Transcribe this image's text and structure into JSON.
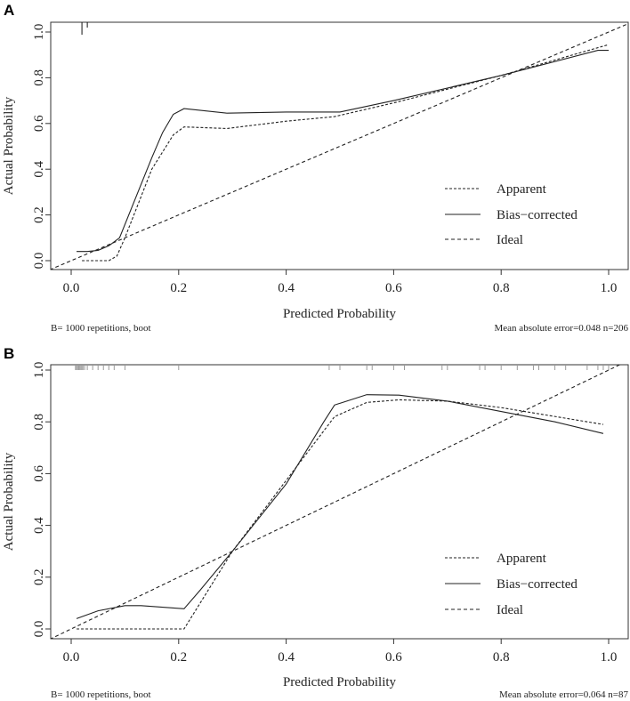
{
  "chart_data": [
    {
      "type": "line",
      "panel": "A",
      "xlabel": "Predicted Probability",
      "ylabel": "Actual Probability",
      "xlim": [
        -0.04,
        1.04
      ],
      "ylim": [
        -0.04,
        1.04
      ],
      "xticks": [
        "0.0",
        "0.2",
        "0.4",
        "0.6",
        "0.8",
        "1.0"
      ],
      "yticks": [
        "0.0",
        "0.2",
        "0.4",
        "0.6",
        "0.8",
        "1.0"
      ],
      "legend": {
        "position": "bottom-right",
        "labels": [
          "Apparent",
          "Bias−corrected",
          "Ideal"
        ]
      },
      "footnote_left": "B= 1000 repetitions, boot",
      "footnote_right": "Mean absolute error=0.048 n=206",
      "rug": [
        0.02,
        0.03
      ],
      "series": [
        {
          "name": "Apparent",
          "style": "dashed",
          "x": [
            0.02,
            0.07,
            0.085,
            0.1,
            0.15,
            0.19,
            0.21,
            0.29,
            0.4,
            0.49,
            0.6,
            0.8,
            1.0
          ],
          "y": [
            0,
            0,
            0.02,
            0.1,
            0.4,
            0.55,
            0.585,
            0.578,
            0.61,
            0.63,
            0.69,
            0.81,
            0.945
          ]
        },
        {
          "name": "Bias-corrected",
          "style": "solid",
          "x": [
            0.01,
            0.03,
            0.05,
            0.07,
            0.09,
            0.15,
            0.17,
            0.19,
            0.21,
            0.29,
            0.4,
            0.5,
            0.6,
            0.8,
            0.98,
            1.0
          ],
          "y": [
            0.04,
            0.04,
            0.045,
            0.065,
            0.1,
            0.45,
            0.56,
            0.64,
            0.665,
            0.645,
            0.65,
            0.65,
            0.7,
            0.81,
            0.92,
            0.92
          ]
        },
        {
          "name": "Ideal",
          "style": "dashed",
          "x": [
            -0.04,
            1.04
          ],
          "y": [
            -0.04,
            1.04
          ]
        }
      ]
    },
    {
      "type": "line",
      "panel": "B",
      "xlabel": "Predicted Probability",
      "ylabel": "Actual Probability",
      "xlim": [
        -0.04,
        1.04
      ],
      "ylim": [
        -0.04,
        1.04
      ],
      "xticks": [
        "0.0",
        "0.2",
        "0.4",
        "0.6",
        "0.8",
        "1.0"
      ],
      "yticks": [
        "0.0",
        "0.2",
        "0.4",
        "0.6",
        "0.8",
        "1.0"
      ],
      "legend": {
        "position": "bottom-right",
        "labels": [
          "Apparent",
          "Bias−corrected",
          "Ideal"
        ]
      },
      "footnote_left": "B= 1000 repetitions, boot",
      "footnote_right": "Mean absolute error=0.064 n=87",
      "rug": [
        0.008,
        0.01,
        0.012,
        0.014,
        0.016,
        0.018,
        0.02,
        0.022,
        0.025,
        0.03,
        0.04,
        0.05,
        0.06,
        0.07,
        0.08,
        0.1,
        0.2,
        0.48,
        0.5,
        0.55,
        0.56,
        0.6,
        0.62,
        0.69,
        0.7,
        0.76,
        0.77,
        0.8,
        0.83,
        0.86,
        0.87,
        0.9,
        0.92,
        0.96,
        0.98,
        0.99,
        1.0
      ],
      "series": [
        {
          "name": "Apparent",
          "style": "dashed",
          "x": [
            0.01,
            0.21,
            0.3,
            0.49,
            0.55,
            0.61,
            0.7,
            0.8,
            0.99
          ],
          "y": [
            0,
            0,
            0.3,
            0.82,
            0.875,
            0.885,
            0.88,
            0.855,
            0.79
          ]
        },
        {
          "name": "Bias-corrected",
          "style": "solid",
          "x": [
            0.01,
            0.05,
            0.1,
            0.13,
            0.21,
            0.24,
            0.3,
            0.4,
            0.47,
            0.49,
            0.55,
            0.61,
            0.7,
            0.8,
            0.9,
            0.99
          ],
          "y": [
            0.04,
            0.07,
            0.09,
            0.09,
            0.078,
            0.15,
            0.3,
            0.56,
            0.8,
            0.865,
            0.905,
            0.903,
            0.88,
            0.84,
            0.8,
            0.755
          ]
        },
        {
          "name": "Ideal",
          "style": "dashed",
          "x": [
            -0.04,
            1.04
          ],
          "y": [
            -0.04,
            1.04
          ]
        }
      ]
    }
  ]
}
